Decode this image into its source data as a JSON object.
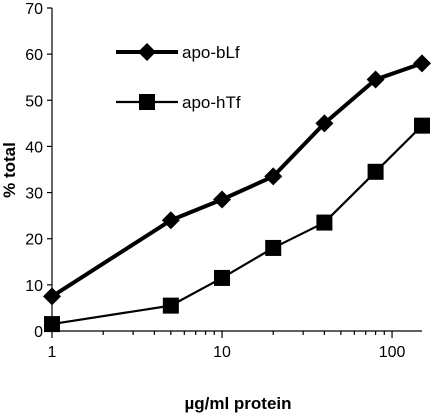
{
  "chart_data": {
    "type": "line",
    "xlabel": "µg/ml protein",
    "ylabel": "% total",
    "xscale": "log",
    "xlim": [
      1,
      150
    ],
    "ylim": [
      0,
      70
    ],
    "xticks": [
      1,
      10,
      100
    ],
    "xtick_labels": [
      "1",
      "10",
      "100"
    ],
    "yticks": [
      0,
      10,
      20,
      30,
      40,
      50,
      60,
      70
    ],
    "ytick_labels": [
      "0",
      "10",
      "20",
      "30",
      "40",
      "50",
      "60",
      "70"
    ],
    "grid": false,
    "legend_position": "top-left",
    "series": [
      {
        "name": "apo-bLf",
        "marker": "diamond",
        "line": "thick",
        "color": "#000000",
        "x": [
          1,
          5,
          10,
          20,
          40,
          80,
          150
        ],
        "y": [
          7.5,
          24,
          28.5,
          33.5,
          45,
          54.5,
          58
        ]
      },
      {
        "name": "apo-hTf",
        "marker": "square",
        "line": "thin",
        "color": "#000000",
        "x": [
          1,
          5,
          10,
          20,
          40,
          80,
          150
        ],
        "y": [
          1.5,
          5.5,
          11.5,
          18,
          23.5,
          34.5,
          44.5
        ]
      }
    ]
  }
}
